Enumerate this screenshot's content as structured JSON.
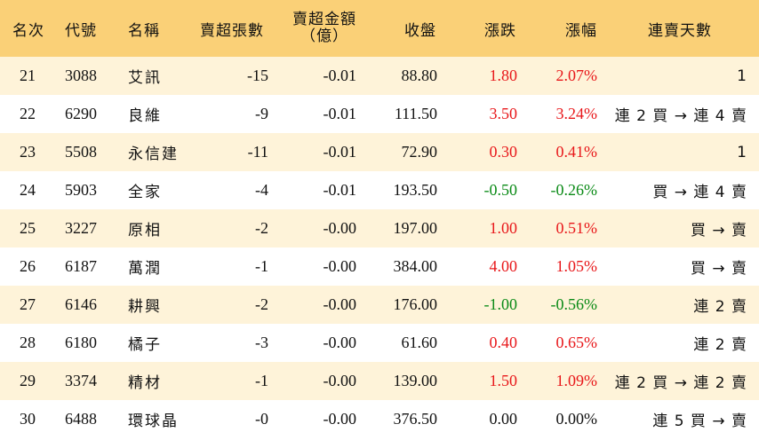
{
  "header": {
    "rank": "名次",
    "code": "代號",
    "name": "名稱",
    "net_lots": "賣超張數",
    "net_amount_line1": "賣超金額",
    "net_amount_line2": "（億）",
    "close": "收盤",
    "change": "漲跌",
    "pct": "漲幅",
    "streak": "連賣天數"
  },
  "colors": {
    "header_bg": "#fad077",
    "stripe_bg": "#fef3d9",
    "up": "#e8171a",
    "down": "#0a8a16"
  },
  "rows": [
    {
      "rank": "21",
      "code": "3088",
      "name": "艾訊",
      "lots": "-15",
      "amount": "-0.01",
      "close": "88.80",
      "change": "1.80",
      "pct": "2.07%",
      "dir": "up",
      "streak": "1"
    },
    {
      "rank": "22",
      "code": "6290",
      "name": "良維",
      "lots": "-9",
      "amount": "-0.01",
      "close": "111.50",
      "change": "3.50",
      "pct": "3.24%",
      "dir": "up",
      "streak": "連 2 買 → 連 4 賣"
    },
    {
      "rank": "23",
      "code": "5508",
      "name": "永信建",
      "lots": "-11",
      "amount": "-0.01",
      "close": "72.90",
      "change": "0.30",
      "pct": "0.41%",
      "dir": "up",
      "streak": "1"
    },
    {
      "rank": "24",
      "code": "5903",
      "name": "全家",
      "lots": "-4",
      "amount": "-0.01",
      "close": "193.50",
      "change": "-0.50",
      "pct": "-0.26%",
      "dir": "down",
      "streak": "買 → 連 4 賣"
    },
    {
      "rank": "25",
      "code": "3227",
      "name": "原相",
      "lots": "-2",
      "amount": "-0.00",
      "close": "197.00",
      "change": "1.00",
      "pct": "0.51%",
      "dir": "up",
      "streak": "買 → 賣"
    },
    {
      "rank": "26",
      "code": "6187",
      "name": "萬潤",
      "lots": "-1",
      "amount": "-0.00",
      "close": "384.00",
      "change": "4.00",
      "pct": "1.05%",
      "dir": "up",
      "streak": "買 → 賣"
    },
    {
      "rank": "27",
      "code": "6146",
      "name": "耕興",
      "lots": "-2",
      "amount": "-0.00",
      "close": "176.00",
      "change": "-1.00",
      "pct": "-0.56%",
      "dir": "down",
      "streak": "連 2 賣"
    },
    {
      "rank": "28",
      "code": "6180",
      "name": "橘子",
      "lots": "-3",
      "amount": "-0.00",
      "close": "61.60",
      "change": "0.40",
      "pct": "0.65%",
      "dir": "up",
      "streak": "連 2 賣"
    },
    {
      "rank": "29",
      "code": "3374",
      "name": "精材",
      "lots": "-1",
      "amount": "-0.00",
      "close": "139.00",
      "change": "1.50",
      "pct": "1.09%",
      "dir": "up",
      "streak": "連 2 買 → 連 2 賣"
    },
    {
      "rank": "30",
      "code": "6488",
      "name": "環球晶",
      "lots": "-0",
      "amount": "-0.00",
      "close": "376.50",
      "change": "0.00",
      "pct": "0.00%",
      "dir": "flat",
      "streak": "連 5 買 → 賣"
    }
  ]
}
